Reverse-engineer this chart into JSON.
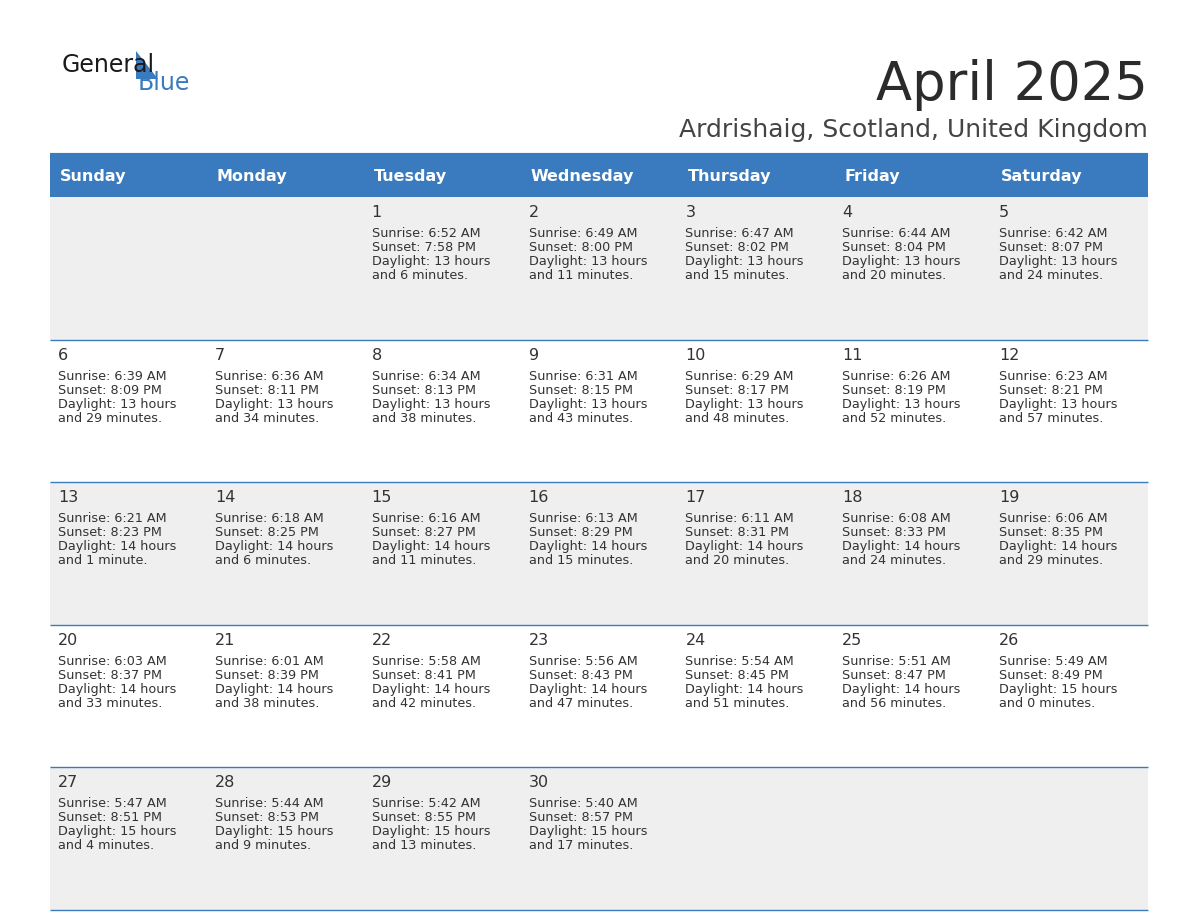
{
  "title": "April 2025",
  "subtitle": "Ardrishaig, Scotland, United Kingdom",
  "days_of_week": [
    "Sunday",
    "Monday",
    "Tuesday",
    "Wednesday",
    "Thursday",
    "Friday",
    "Saturday"
  ],
  "header_bg": "#3a7bbf",
  "header_text": "#ffffff",
  "row_bg_odd": "#efefef",
  "row_bg_even": "#ffffff",
  "cell_text": "#333333",
  "border_color": "#3a7bbf",
  "title_color": "#2b2b2b",
  "subtitle_color": "#444444",
  "calendar": [
    [
      {
        "day": null,
        "sunrise": null,
        "sunset": null,
        "daylight_line1": null,
        "daylight_line2": null
      },
      {
        "day": null,
        "sunrise": null,
        "sunset": null,
        "daylight_line1": null,
        "daylight_line2": null
      },
      {
        "day": 1,
        "sunrise": "6:52 AM",
        "sunset": "7:58 PM",
        "daylight_line1": "Daylight: 13 hours",
        "daylight_line2": "and 6 minutes."
      },
      {
        "day": 2,
        "sunrise": "6:49 AM",
        "sunset": "8:00 PM",
        "daylight_line1": "Daylight: 13 hours",
        "daylight_line2": "and 11 minutes."
      },
      {
        "day": 3,
        "sunrise": "6:47 AM",
        "sunset": "8:02 PM",
        "daylight_line1": "Daylight: 13 hours",
        "daylight_line2": "and 15 minutes."
      },
      {
        "day": 4,
        "sunrise": "6:44 AM",
        "sunset": "8:04 PM",
        "daylight_line1": "Daylight: 13 hours",
        "daylight_line2": "and 20 minutes."
      },
      {
        "day": 5,
        "sunrise": "6:42 AM",
        "sunset": "8:07 PM",
        "daylight_line1": "Daylight: 13 hours",
        "daylight_line2": "and 24 minutes."
      }
    ],
    [
      {
        "day": 6,
        "sunrise": "6:39 AM",
        "sunset": "8:09 PM",
        "daylight_line1": "Daylight: 13 hours",
        "daylight_line2": "and 29 minutes."
      },
      {
        "day": 7,
        "sunrise": "6:36 AM",
        "sunset": "8:11 PM",
        "daylight_line1": "Daylight: 13 hours",
        "daylight_line2": "and 34 minutes."
      },
      {
        "day": 8,
        "sunrise": "6:34 AM",
        "sunset": "8:13 PM",
        "daylight_line1": "Daylight: 13 hours",
        "daylight_line2": "and 38 minutes."
      },
      {
        "day": 9,
        "sunrise": "6:31 AM",
        "sunset": "8:15 PM",
        "daylight_line1": "Daylight: 13 hours",
        "daylight_line2": "and 43 minutes."
      },
      {
        "day": 10,
        "sunrise": "6:29 AM",
        "sunset": "8:17 PM",
        "daylight_line1": "Daylight: 13 hours",
        "daylight_line2": "and 48 minutes."
      },
      {
        "day": 11,
        "sunrise": "6:26 AM",
        "sunset": "8:19 PM",
        "daylight_line1": "Daylight: 13 hours",
        "daylight_line2": "and 52 minutes."
      },
      {
        "day": 12,
        "sunrise": "6:23 AM",
        "sunset": "8:21 PM",
        "daylight_line1": "Daylight: 13 hours",
        "daylight_line2": "and 57 minutes."
      }
    ],
    [
      {
        "day": 13,
        "sunrise": "6:21 AM",
        "sunset": "8:23 PM",
        "daylight_line1": "Daylight: 14 hours",
        "daylight_line2": "and 1 minute."
      },
      {
        "day": 14,
        "sunrise": "6:18 AM",
        "sunset": "8:25 PM",
        "daylight_line1": "Daylight: 14 hours",
        "daylight_line2": "and 6 minutes."
      },
      {
        "day": 15,
        "sunrise": "6:16 AM",
        "sunset": "8:27 PM",
        "daylight_line1": "Daylight: 14 hours",
        "daylight_line2": "and 11 minutes."
      },
      {
        "day": 16,
        "sunrise": "6:13 AM",
        "sunset": "8:29 PM",
        "daylight_line1": "Daylight: 14 hours",
        "daylight_line2": "and 15 minutes."
      },
      {
        "day": 17,
        "sunrise": "6:11 AM",
        "sunset": "8:31 PM",
        "daylight_line1": "Daylight: 14 hours",
        "daylight_line2": "and 20 minutes."
      },
      {
        "day": 18,
        "sunrise": "6:08 AM",
        "sunset": "8:33 PM",
        "daylight_line1": "Daylight: 14 hours",
        "daylight_line2": "and 24 minutes."
      },
      {
        "day": 19,
        "sunrise": "6:06 AM",
        "sunset": "8:35 PM",
        "daylight_line1": "Daylight: 14 hours",
        "daylight_line2": "and 29 minutes."
      }
    ],
    [
      {
        "day": 20,
        "sunrise": "6:03 AM",
        "sunset": "8:37 PM",
        "daylight_line1": "Daylight: 14 hours",
        "daylight_line2": "and 33 minutes."
      },
      {
        "day": 21,
        "sunrise": "6:01 AM",
        "sunset": "8:39 PM",
        "daylight_line1": "Daylight: 14 hours",
        "daylight_line2": "and 38 minutes."
      },
      {
        "day": 22,
        "sunrise": "5:58 AM",
        "sunset": "8:41 PM",
        "daylight_line1": "Daylight: 14 hours",
        "daylight_line2": "and 42 minutes."
      },
      {
        "day": 23,
        "sunrise": "5:56 AM",
        "sunset": "8:43 PM",
        "daylight_line1": "Daylight: 14 hours",
        "daylight_line2": "and 47 minutes."
      },
      {
        "day": 24,
        "sunrise": "5:54 AM",
        "sunset": "8:45 PM",
        "daylight_line1": "Daylight: 14 hours",
        "daylight_line2": "and 51 minutes."
      },
      {
        "day": 25,
        "sunrise": "5:51 AM",
        "sunset": "8:47 PM",
        "daylight_line1": "Daylight: 14 hours",
        "daylight_line2": "and 56 minutes."
      },
      {
        "day": 26,
        "sunrise": "5:49 AM",
        "sunset": "8:49 PM",
        "daylight_line1": "Daylight: 15 hours",
        "daylight_line2": "and 0 minutes."
      }
    ],
    [
      {
        "day": 27,
        "sunrise": "5:47 AM",
        "sunset": "8:51 PM",
        "daylight_line1": "Daylight: 15 hours",
        "daylight_line2": "and 4 minutes."
      },
      {
        "day": 28,
        "sunrise": "5:44 AM",
        "sunset": "8:53 PM",
        "daylight_line1": "Daylight: 15 hours",
        "daylight_line2": "and 9 minutes."
      },
      {
        "day": 29,
        "sunrise": "5:42 AM",
        "sunset": "8:55 PM",
        "daylight_line1": "Daylight: 15 hours",
        "daylight_line2": "and 13 minutes."
      },
      {
        "day": 30,
        "sunrise": "5:40 AM",
        "sunset": "8:57 PM",
        "daylight_line1": "Daylight: 15 hours",
        "daylight_line2": "and 17 minutes."
      },
      {
        "day": null,
        "sunrise": null,
        "sunset": null,
        "daylight_line1": null,
        "daylight_line2": null
      },
      {
        "day": null,
        "sunrise": null,
        "sunset": null,
        "daylight_line1": null,
        "daylight_line2": null
      },
      {
        "day": null,
        "sunrise": null,
        "sunset": null,
        "daylight_line1": null,
        "daylight_line2": null
      }
    ]
  ]
}
